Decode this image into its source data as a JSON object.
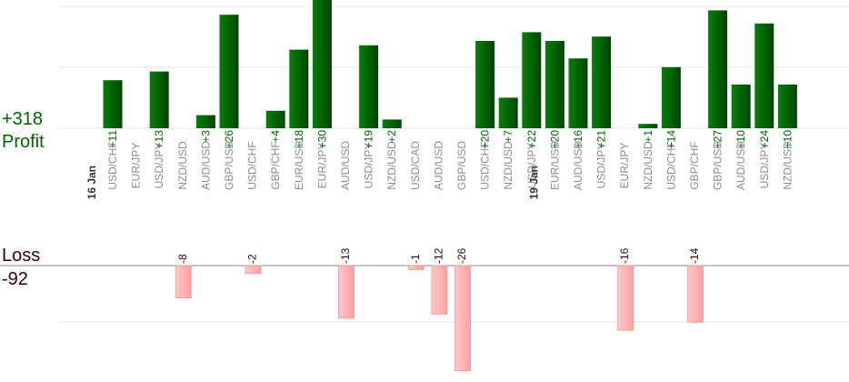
{
  "summary": {
    "profit_total": "+318",
    "profit_label": "Profit",
    "loss_label": "Loss",
    "loss_total": "-92"
  },
  "colors": {
    "profit_bar": "#006400",
    "profit_text": "#006400",
    "loss_bar": "#ffb6b6",
    "loss_text": "#3a0000",
    "pair_text": "#8c8c8c",
    "date_text": "#333333",
    "grid": "#e6e6e6",
    "baseline": "#888888"
  },
  "chart_data": {
    "type": "bar",
    "groups": [
      {
        "date": "16 Jan",
        "start_index": 0
      },
      {
        "date": "19 Jan",
        "start_index": 19
      }
    ],
    "trades": [
      {
        "pair": "USD/CHF",
        "value": 11
      },
      {
        "pair": "EUR/JPY",
        "value": null
      },
      {
        "pair": "USD/JPY",
        "value": 13
      },
      {
        "pair": "NZD/USD",
        "value": -8
      },
      {
        "pair": "AUD/USD",
        "value": 3
      },
      {
        "pair": "GBP/USD",
        "value": 26
      },
      {
        "pair": "USD/CHF",
        "value": -2
      },
      {
        "pair": "GBP/CHF",
        "value": 4
      },
      {
        "pair": "EUR/USD",
        "value": 18
      },
      {
        "pair": "EUR/JPY",
        "value": 30
      },
      {
        "pair": "AUD/USD",
        "value": -13
      },
      {
        "pair": "USD/JPY",
        "value": 19
      },
      {
        "pair": "NZD/USD",
        "value": 2
      },
      {
        "pair": "USD/CAD",
        "value": -1
      },
      {
        "pair": "AUD/USD",
        "value": -12
      },
      {
        "pair": "GBP/USD",
        "value": -26
      },
      {
        "pair": "USD/CHF",
        "value": 20
      },
      {
        "pair": "NZD/USD",
        "value": 7
      },
      {
        "pair": "USD/JPY",
        "value": 22
      },
      {
        "pair": "EUR/USD",
        "value": 20
      },
      {
        "pair": "AUD/USD",
        "value": 16
      },
      {
        "pair": "USD/JPY",
        "value": 21
      },
      {
        "pair": "EUR/JPY",
        "value": -16
      },
      {
        "pair": "NZD/USD",
        "value": 1
      },
      {
        "pair": "USD/CHF",
        "value": 14
      },
      {
        "pair": "GBP/CHF",
        "value": -14
      },
      {
        "pair": "GBP/USD",
        "value": 27
      },
      {
        "pair": "AUD/USD",
        "value": 10
      },
      {
        "pair": "USD/JPY",
        "value": 24
      },
      {
        "pair": "NZD/USD",
        "value": 10
      }
    ]
  }
}
